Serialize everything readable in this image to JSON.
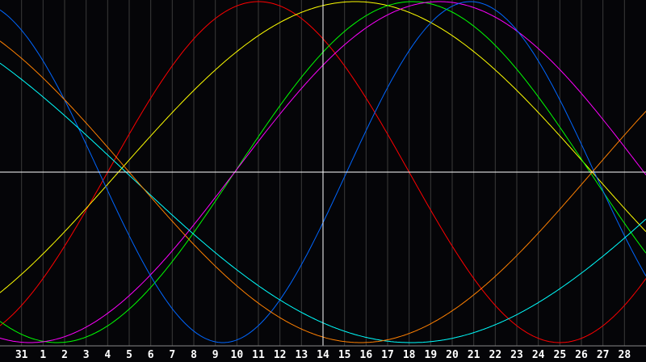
{
  "chart_data": {
    "type": "line",
    "title": "",
    "xlabel": "",
    "ylabel": "",
    "x_tick_labels": [
      "31",
      "1",
      "2",
      "3",
      "4",
      "5",
      "6",
      "7",
      "8",
      "9",
      "10",
      "11",
      "12",
      "13",
      "14",
      "15",
      "16",
      "17",
      "18",
      "19",
      "20",
      "21",
      "22",
      "23",
      "24",
      "25",
      "26",
      "27",
      "28"
    ],
    "x_range_days": [
      0,
      30
    ],
    "ylim": [
      -1,
      1
    ],
    "grid": true,
    "highlighted_tick": "14",
    "background": "#050508",
    "series": [
      {
        "color": "#ff0000",
        "period_days": 28,
        "upcross_day": 5.0
      },
      {
        "color": "#ffff00",
        "period_days": 44,
        "upcross_day": 5.5
      },
      {
        "color": "#00ff00",
        "period_days": 33,
        "upcross_day": 10.9
      },
      {
        "color": "#ff00ff",
        "period_days": 38,
        "upcross_day": 10.9
      },
      {
        "color": "#0066ff",
        "period_days": 23,
        "upcross_day": 16.1
      },
      {
        "color": "#00ffff",
        "period_days": 53,
        "upcross_day": 32.35
      },
      {
        "color": "#ff8000",
        "period_days": 43,
        "upcross_day": 27.5
      }
    ]
  }
}
